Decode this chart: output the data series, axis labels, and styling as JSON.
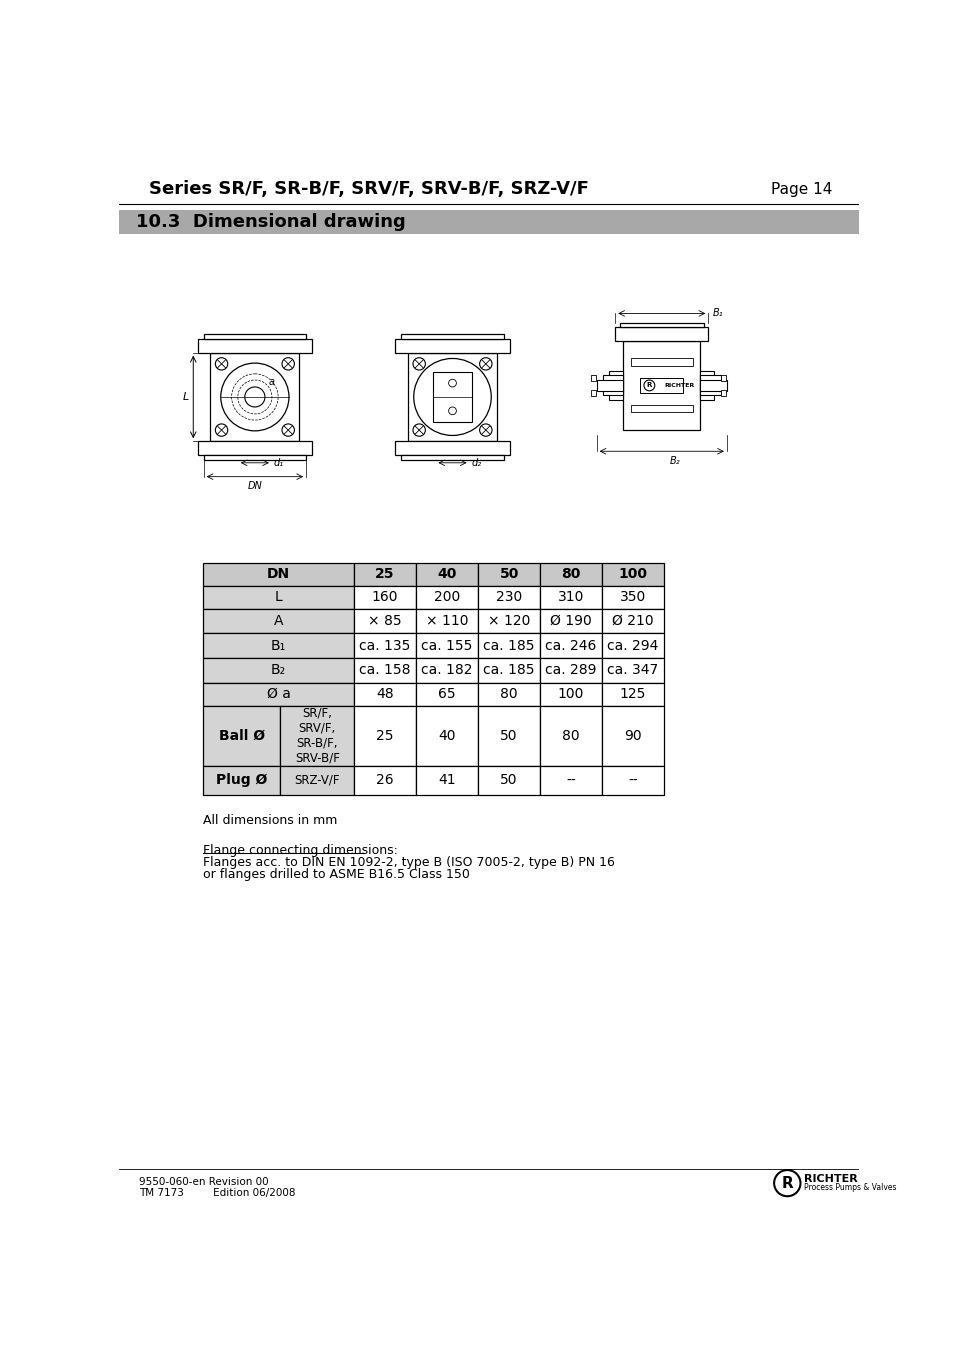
{
  "title": "Series SR/F, SR-B/F, SRV/F, SRV-B/F, SRZ-V/F",
  "page": "Page 14",
  "section": "10.3  Dimensional drawing",
  "footer_left_line1": "9550-060-en Revision 00",
  "footer_left_line2": "TM 7173         Edition 06/2008",
  "note_line1": "All dimensions in mm",
  "note_line2": "Flange connecting dimensions:",
  "note_line3": "Flanges acc. to DIN EN 1092-2, type B (ISO 7005-2, type B) PN 16",
  "note_line4": "or flanges drilled to ASME B16.5 Class 150",
  "table_header": [
    "DN",
    "",
    "25",
    "40",
    "50",
    "80",
    "100"
  ],
  "bg_color": "#ffffff",
  "header_gray": "#c8c8c8",
  "row_gray": "#d4d4d4",
  "row_white": "#ffffff",
  "section_bg": "#a8a8a8"
}
